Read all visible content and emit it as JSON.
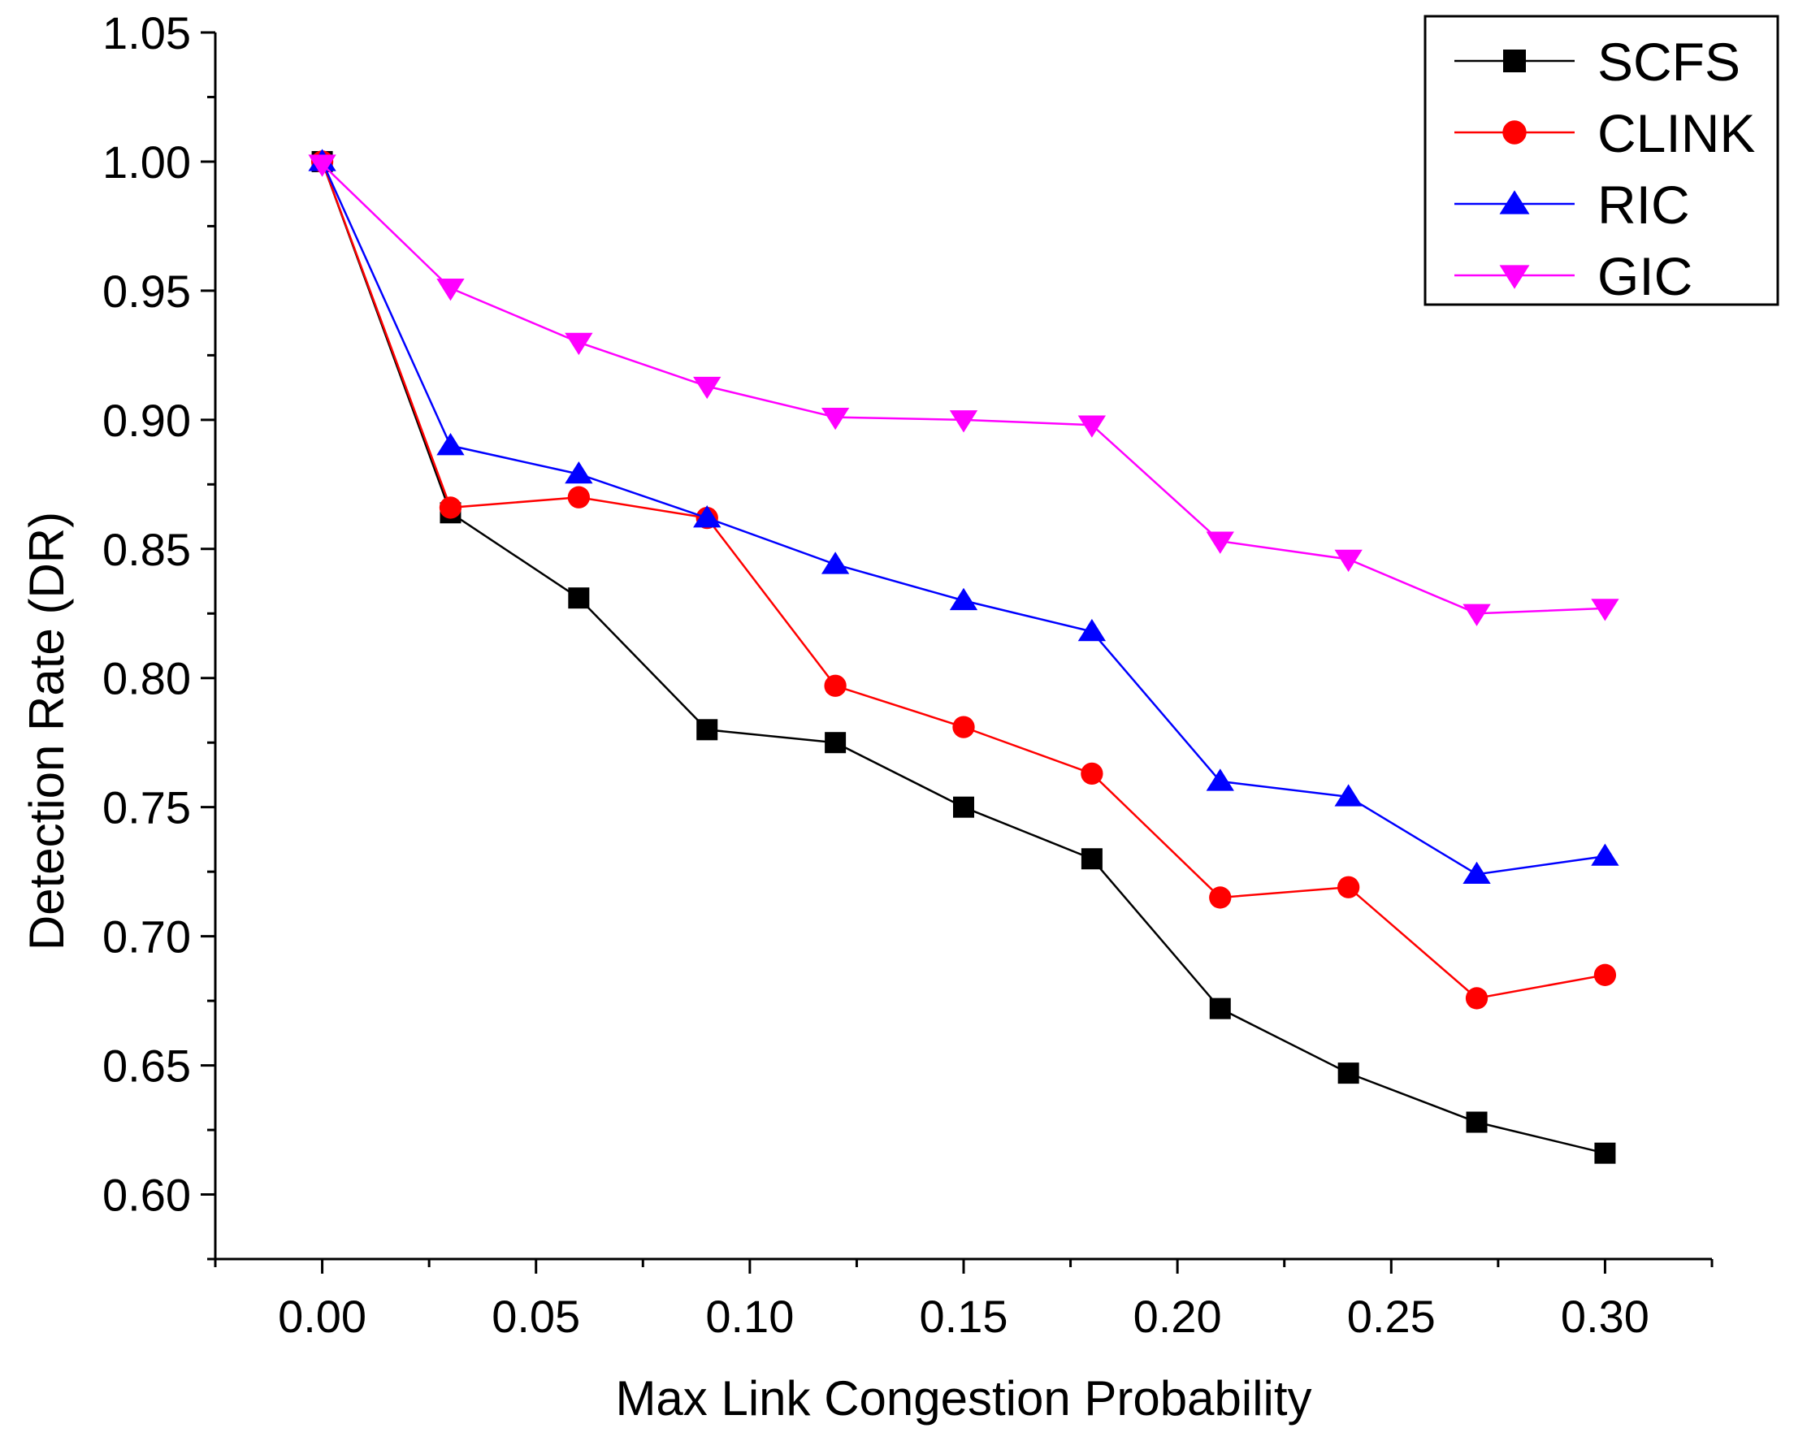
{
  "chart_data": {
    "type": "line",
    "title": "",
    "xlabel": "Max Link Congestion Probability",
    "ylabel": "Detection Rate (DR)",
    "xlim": [
      -0.025,
      0.325
    ],
    "ylim": [
      0.575,
      1.05
    ],
    "xticks": [
      0.0,
      0.05,
      0.1,
      0.15,
      0.2,
      0.25,
      0.3
    ],
    "xtick_labels": [
      "0.00",
      "0.05",
      "0.10",
      "0.15",
      "0.20",
      "0.25",
      "0.30"
    ],
    "yticks": [
      0.6,
      0.65,
      0.7,
      0.75,
      0.8,
      0.85,
      0.9,
      0.95,
      1.0,
      1.05
    ],
    "ytick_labels": [
      "0.60",
      "0.65",
      "0.70",
      "0.75",
      "0.80",
      "0.85",
      "0.90",
      "0.95",
      "1.00",
      "1.05"
    ],
    "grid": false,
    "legend_position": "top-right",
    "x": [
      0.0,
      0.03,
      0.06,
      0.09,
      0.12,
      0.15,
      0.18,
      0.21,
      0.24,
      0.27,
      0.3
    ],
    "series": [
      {
        "name": "SCFS",
        "color": "#000000",
        "marker": "square",
        "values": [
          1.0,
          0.864,
          0.831,
          0.78,
          0.775,
          0.75,
          0.73,
          0.672,
          0.647,
          0.628,
          0.616
        ]
      },
      {
        "name": "CLINK",
        "color": "#ff0000",
        "marker": "circle",
        "values": [
          1.0,
          0.866,
          0.87,
          0.862,
          0.797,
          0.781,
          0.763,
          0.715,
          0.719,
          0.676,
          0.685
        ]
      },
      {
        "name": "RIC",
        "color": "#0000ff",
        "marker": "triangle-up",
        "values": [
          1.0,
          0.89,
          0.879,
          0.862,
          0.844,
          0.83,
          0.818,
          0.76,
          0.754,
          0.724,
          0.731
        ]
      },
      {
        "name": "GIC",
        "color": "#ff00ff",
        "marker": "triangle-down",
        "values": [
          0.999,
          0.951,
          0.93,
          0.913,
          0.901,
          0.9,
          0.898,
          0.853,
          0.846,
          0.825,
          0.827
        ]
      }
    ]
  }
}
